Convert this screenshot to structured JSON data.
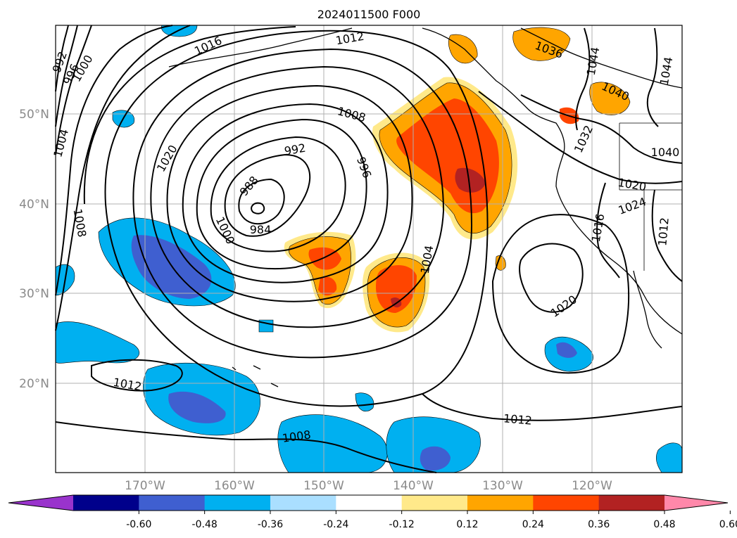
{
  "title": "2024011500 F000",
  "latitude_labels": [
    "50°N",
    "40°N",
    "30°N",
    "20°N"
  ],
  "longitude_labels": [
    "170°W",
    "160°W",
    "150°W",
    "140°W",
    "130°W",
    "120°W"
  ],
  "colorbar": {
    "ticks": [
      "-0.60",
      "-0.48",
      "-0.36",
      "-0.24",
      "-0.12",
      "0.12",
      "0.24",
      "0.36",
      "0.48",
      "0.60"
    ],
    "colors": [
      "#9933cc",
      "#00008b",
      "#3f5fd0",
      "#00b0f0",
      "#aadfff",
      "#ffffff",
      "#ffe98a",
      "#ffa500",
      "#ff4500",
      "#b22222",
      "#ff88aa"
    ]
  },
  "isobar_labels": [
    "1016",
    "1012",
    "992",
    "996",
    "1000",
    "1004",
    "1008",
    "1020",
    "1008",
    "992",
    "996",
    "988",
    "984",
    "1000",
    "1004",
    "1012",
    "1008",
    "1012",
    "1020",
    "1016",
    "1012",
    "1020",
    "1044",
    "1044",
    "1036",
    "1040",
    "1032",
    "1040",
    "1024"
  ],
  "colors": {
    "negative_fill": "#00b0f0",
    "positive_fill": "#ff4500"
  }
}
